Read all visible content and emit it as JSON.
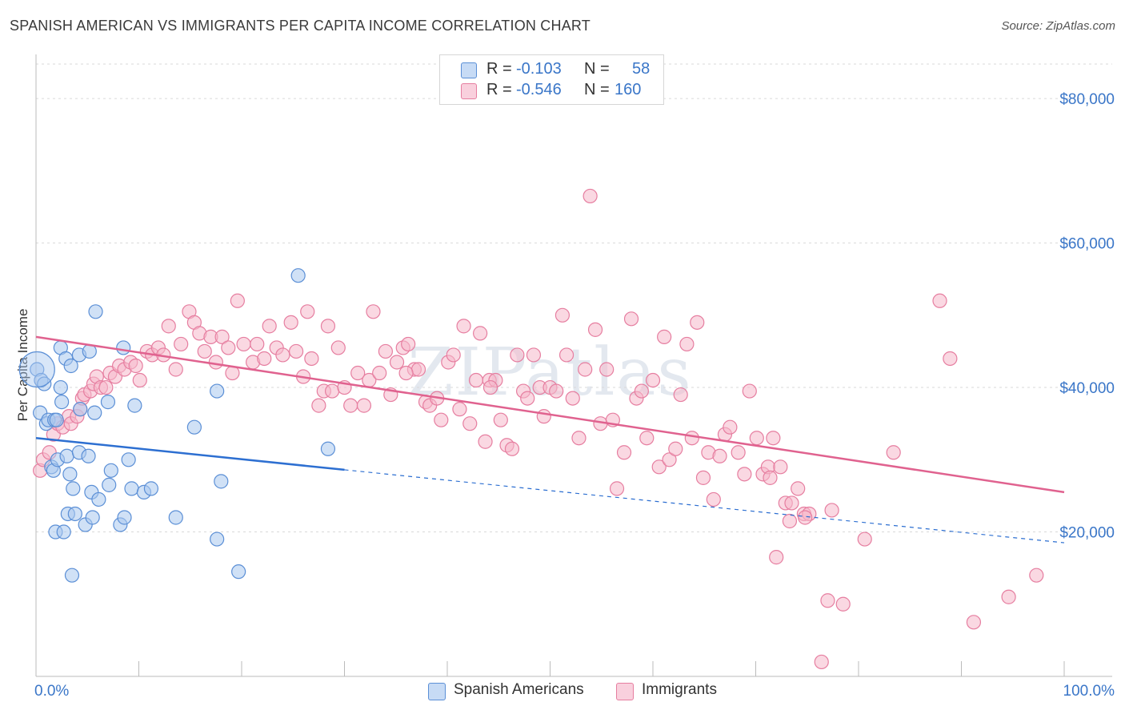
{
  "title": "SPANISH AMERICAN VS IMMIGRANTS PER CAPITA INCOME CORRELATION CHART",
  "source": "Source: ZipAtlas.com",
  "legend_top": {
    "rows": [
      {
        "r_label": "R =",
        "r_value": "-0.103",
        "n_label": "N =",
        "n_value": "58"
      },
      {
        "r_label": "R =",
        "r_value": "-0.546",
        "n_label": "N =",
        "n_value": "160"
      }
    ]
  },
  "legend_bottom": [
    "Spanish Americans",
    "Immigrants"
  ],
  "watermark": "ZIPatlas",
  "colors": {
    "blue_fill": "#a9c8ef",
    "blue_stroke": "#5b8fd6",
    "blue_line": "#2d6fd1",
    "pink_fill": "#f6b8cb",
    "pink_stroke": "#e67ea0",
    "pink_line": "#e0628f",
    "axis_label": "#3a76c8",
    "grid": "#d9d9d9"
  },
  "chart_data": {
    "type": "scatter",
    "title": "SPANISH AMERICAN VS IMMIGRANTS PER CAPITA INCOME CORRELATION CHART",
    "xlabel": "",
    "ylabel": "Per Capita Income",
    "xlim": [
      0,
      100
    ],
    "ylim": [
      0,
      85000
    ],
    "x_tick_labels": [
      "0.0%",
      "100.0%"
    ],
    "y_ticks": [
      20000,
      40000,
      60000,
      80000
    ],
    "y_tick_labels": [
      "$20,000",
      "$40,000",
      "$60,000",
      "$80,000"
    ],
    "grid": true,
    "series": [
      {
        "name": "Spanish Americans",
        "r": -0.103,
        "n": 58,
        "trend": {
          "x0": 0,
          "y0": 33000,
          "x1": 30,
          "y1": 28600,
          "dashed_to_x": 100,
          "dashed_to_y": 18500
        },
        "points": [
          [
            0.1,
            42500
          ],
          [
            0.4,
            36500
          ],
          [
            0.5,
            41000
          ],
          [
            0.8,
            40500
          ],
          [
            1.0,
            35000
          ],
          [
            1.2,
            35500
          ],
          [
            1.5,
            29000
          ],
          [
            1.7,
            28500
          ],
          [
            1.8,
            35500
          ],
          [
            1.9,
            20000
          ],
          [
            2.0,
            35500
          ],
          [
            2.1,
            30000
          ],
          [
            2.4,
            45500
          ],
          [
            2.4,
            40000
          ],
          [
            2.5,
            38000
          ],
          [
            2.7,
            20000
          ],
          [
            2.9,
            44000
          ],
          [
            3.0,
            30500
          ],
          [
            3.1,
            22500
          ],
          [
            3.3,
            28000
          ],
          [
            3.4,
            43000
          ],
          [
            3.5,
            14000
          ],
          [
            3.6,
            26000
          ],
          [
            3.8,
            22500
          ],
          [
            4.2,
            44500
          ],
          [
            4.2,
            31000
          ],
          [
            4.3,
            37000
          ],
          [
            4.8,
            21000
          ],
          [
            5.1,
            30500
          ],
          [
            5.2,
            45000
          ],
          [
            5.4,
            25500
          ],
          [
            5.5,
            22000
          ],
          [
            5.7,
            36500
          ],
          [
            5.8,
            50500
          ],
          [
            6.1,
            24500
          ],
          [
            7.0,
            38000
          ],
          [
            7.1,
            26500
          ],
          [
            7.3,
            28500
          ],
          [
            8.2,
            21000
          ],
          [
            8.5,
            45500
          ],
          [
            8.6,
            22000
          ],
          [
            9.0,
            30000
          ],
          [
            9.3,
            26000
          ],
          [
            9.6,
            37500
          ],
          [
            10.5,
            25500
          ],
          [
            11.2,
            26000
          ],
          [
            13.6,
            22000
          ],
          [
            15.4,
            34500
          ],
          [
            17.6,
            39500
          ],
          [
            17.6,
            19000
          ],
          [
            18.0,
            27000
          ],
          [
            19.7,
            14500
          ],
          [
            25.5,
            55500
          ],
          [
            28.4,
            31500
          ]
        ]
      },
      {
        "name": "Immigrants",
        "r": -0.546,
        "n": 160,
        "trend": {
          "x0": 0,
          "y0": 47000,
          "x1": 100,
          "y1": 25500
        },
        "points": [
          [
            0.4,
            28500
          ],
          [
            0.7,
            30000
          ],
          [
            1.3,
            31000
          ],
          [
            1.7,
            33500
          ],
          [
            2.1,
            35000
          ],
          [
            2.6,
            34500
          ],
          [
            3.2,
            36000
          ],
          [
            3.4,
            35000
          ],
          [
            4.0,
            36000
          ],
          [
            4.3,
            37000
          ],
          [
            4.5,
            38500
          ],
          [
            4.7,
            39000
          ],
          [
            5.3,
            39500
          ],
          [
            5.6,
            40500
          ],
          [
            5.9,
            41500
          ],
          [
            6.3,
            40000
          ],
          [
            6.8,
            40000
          ],
          [
            7.2,
            42000
          ],
          [
            7.7,
            41500
          ],
          [
            8.1,
            43000
          ],
          [
            8.6,
            42500
          ],
          [
            9.2,
            43500
          ],
          [
            9.7,
            43000
          ],
          [
            10.1,
            41000
          ],
          [
            10.8,
            45000
          ],
          [
            11.3,
            44500
          ],
          [
            11.9,
            45500
          ],
          [
            12.4,
            44500
          ],
          [
            12.9,
            48500
          ],
          [
            13.6,
            42500
          ],
          [
            14.1,
            46000
          ],
          [
            14.9,
            50500
          ],
          [
            15.4,
            49000
          ],
          [
            15.9,
            47500
          ],
          [
            16.4,
            45000
          ],
          [
            17.0,
            47000
          ],
          [
            17.5,
            43500
          ],
          [
            18.1,
            47000
          ],
          [
            18.7,
            45500
          ],
          [
            19.1,
            42000
          ],
          [
            19.6,
            52000
          ],
          [
            20.2,
            46000
          ],
          [
            21.1,
            43500
          ],
          [
            21.5,
            46000
          ],
          [
            22.2,
            44000
          ],
          [
            22.7,
            48500
          ],
          [
            23.4,
            45500
          ],
          [
            24.0,
            44500
          ],
          [
            24.8,
            49000
          ],
          [
            25.3,
            45000
          ],
          [
            26.0,
            41500
          ],
          [
            26.4,
            50500
          ],
          [
            26.8,
            44000
          ],
          [
            27.5,
            37500
          ],
          [
            28.0,
            39500
          ],
          [
            28.4,
            48500
          ],
          [
            28.8,
            39500
          ],
          [
            29.4,
            45500
          ],
          [
            30.0,
            40000
          ],
          [
            30.6,
            37500
          ],
          [
            31.3,
            42000
          ],
          [
            31.9,
            37500
          ],
          [
            32.4,
            41000
          ],
          [
            32.8,
            50500
          ],
          [
            33.4,
            42000
          ],
          [
            34.0,
            45000
          ],
          [
            34.5,
            39000
          ],
          [
            35.1,
            43500
          ],
          [
            35.7,
            45500
          ],
          [
            36.2,
            46000
          ],
          [
            36.8,
            42500
          ],
          [
            37.2,
            42500
          ],
          [
            37.9,
            38000
          ],
          [
            38.3,
            37500
          ],
          [
            39.0,
            38500
          ],
          [
            39.4,
            35500
          ],
          [
            40.1,
            43500
          ],
          [
            40.6,
            44500
          ],
          [
            41.2,
            37000
          ],
          [
            41.6,
            48500
          ],
          [
            42.2,
            35000
          ],
          [
            42.8,
            41000
          ],
          [
            43.2,
            47500
          ],
          [
            43.7,
            32500
          ],
          [
            44.1,
            41000
          ],
          [
            44.7,
            41000
          ],
          [
            45.2,
            35500
          ],
          [
            45.8,
            32000
          ],
          [
            46.3,
            31500
          ],
          [
            46.8,
            44500
          ],
          [
            47.4,
            39500
          ],
          [
            47.8,
            38500
          ],
          [
            48.4,
            44500
          ],
          [
            49.0,
            40000
          ],
          [
            49.4,
            36000
          ],
          [
            50.0,
            40000
          ],
          [
            50.6,
            39500
          ],
          [
            51.2,
            50000
          ],
          [
            51.6,
            44500
          ],
          [
            52.2,
            38500
          ],
          [
            52.8,
            33000
          ],
          [
            53.4,
            42500
          ],
          [
            53.9,
            66500
          ],
          [
            54.4,
            48000
          ],
          [
            54.9,
            35000
          ],
          [
            55.5,
            42500
          ],
          [
            56.1,
            35500
          ],
          [
            56.5,
            26000
          ],
          [
            57.2,
            31000
          ],
          [
            57.9,
            49500
          ],
          [
            58.4,
            38500
          ],
          [
            58.9,
            39500
          ],
          [
            59.4,
            33000
          ],
          [
            60.0,
            41000
          ],
          [
            60.6,
            29000
          ],
          [
            61.1,
            47000
          ],
          [
            61.6,
            30000
          ],
          [
            62.2,
            31500
          ],
          [
            62.7,
            39000
          ],
          [
            63.3,
            46000
          ],
          [
            63.8,
            33000
          ],
          [
            64.3,
            49000
          ],
          [
            64.9,
            27500
          ],
          [
            65.4,
            31000
          ],
          [
            65.9,
            24500
          ],
          [
            66.5,
            30500
          ],
          [
            67.0,
            33500
          ],
          [
            67.5,
            34500
          ],
          [
            68.3,
            31000
          ],
          [
            68.9,
            28000
          ],
          [
            69.4,
            39500
          ],
          [
            70.1,
            33000
          ],
          [
            70.7,
            28000
          ],
          [
            71.2,
            29000
          ],
          [
            71.7,
            33000
          ],
          [
            72.4,
            29000
          ],
          [
            72.9,
            24000
          ],
          [
            73.5,
            24000
          ],
          [
            74.1,
            26000
          ],
          [
            74.7,
            22500
          ],
          [
            75.2,
            22500
          ],
          [
            72.0,
            16500
          ],
          [
            73.3,
            21500
          ],
          [
            74.8,
            22000
          ],
          [
            77.4,
            23000
          ],
          [
            77.0,
            10500
          ],
          [
            78.5,
            10000
          ],
          [
            80.6,
            19000
          ],
          [
            83.4,
            31000
          ],
          [
            87.9,
            52000
          ],
          [
            88.9,
            44000
          ],
          [
            91.2,
            7500
          ],
          [
            94.6,
            11000
          ],
          [
            97.3,
            14000
          ],
          [
            76.4,
            2000
          ],
          [
            71.4,
            27500
          ],
          [
            44.2,
            40000
          ],
          [
            36.0,
            42000
          ]
        ]
      }
    ]
  }
}
